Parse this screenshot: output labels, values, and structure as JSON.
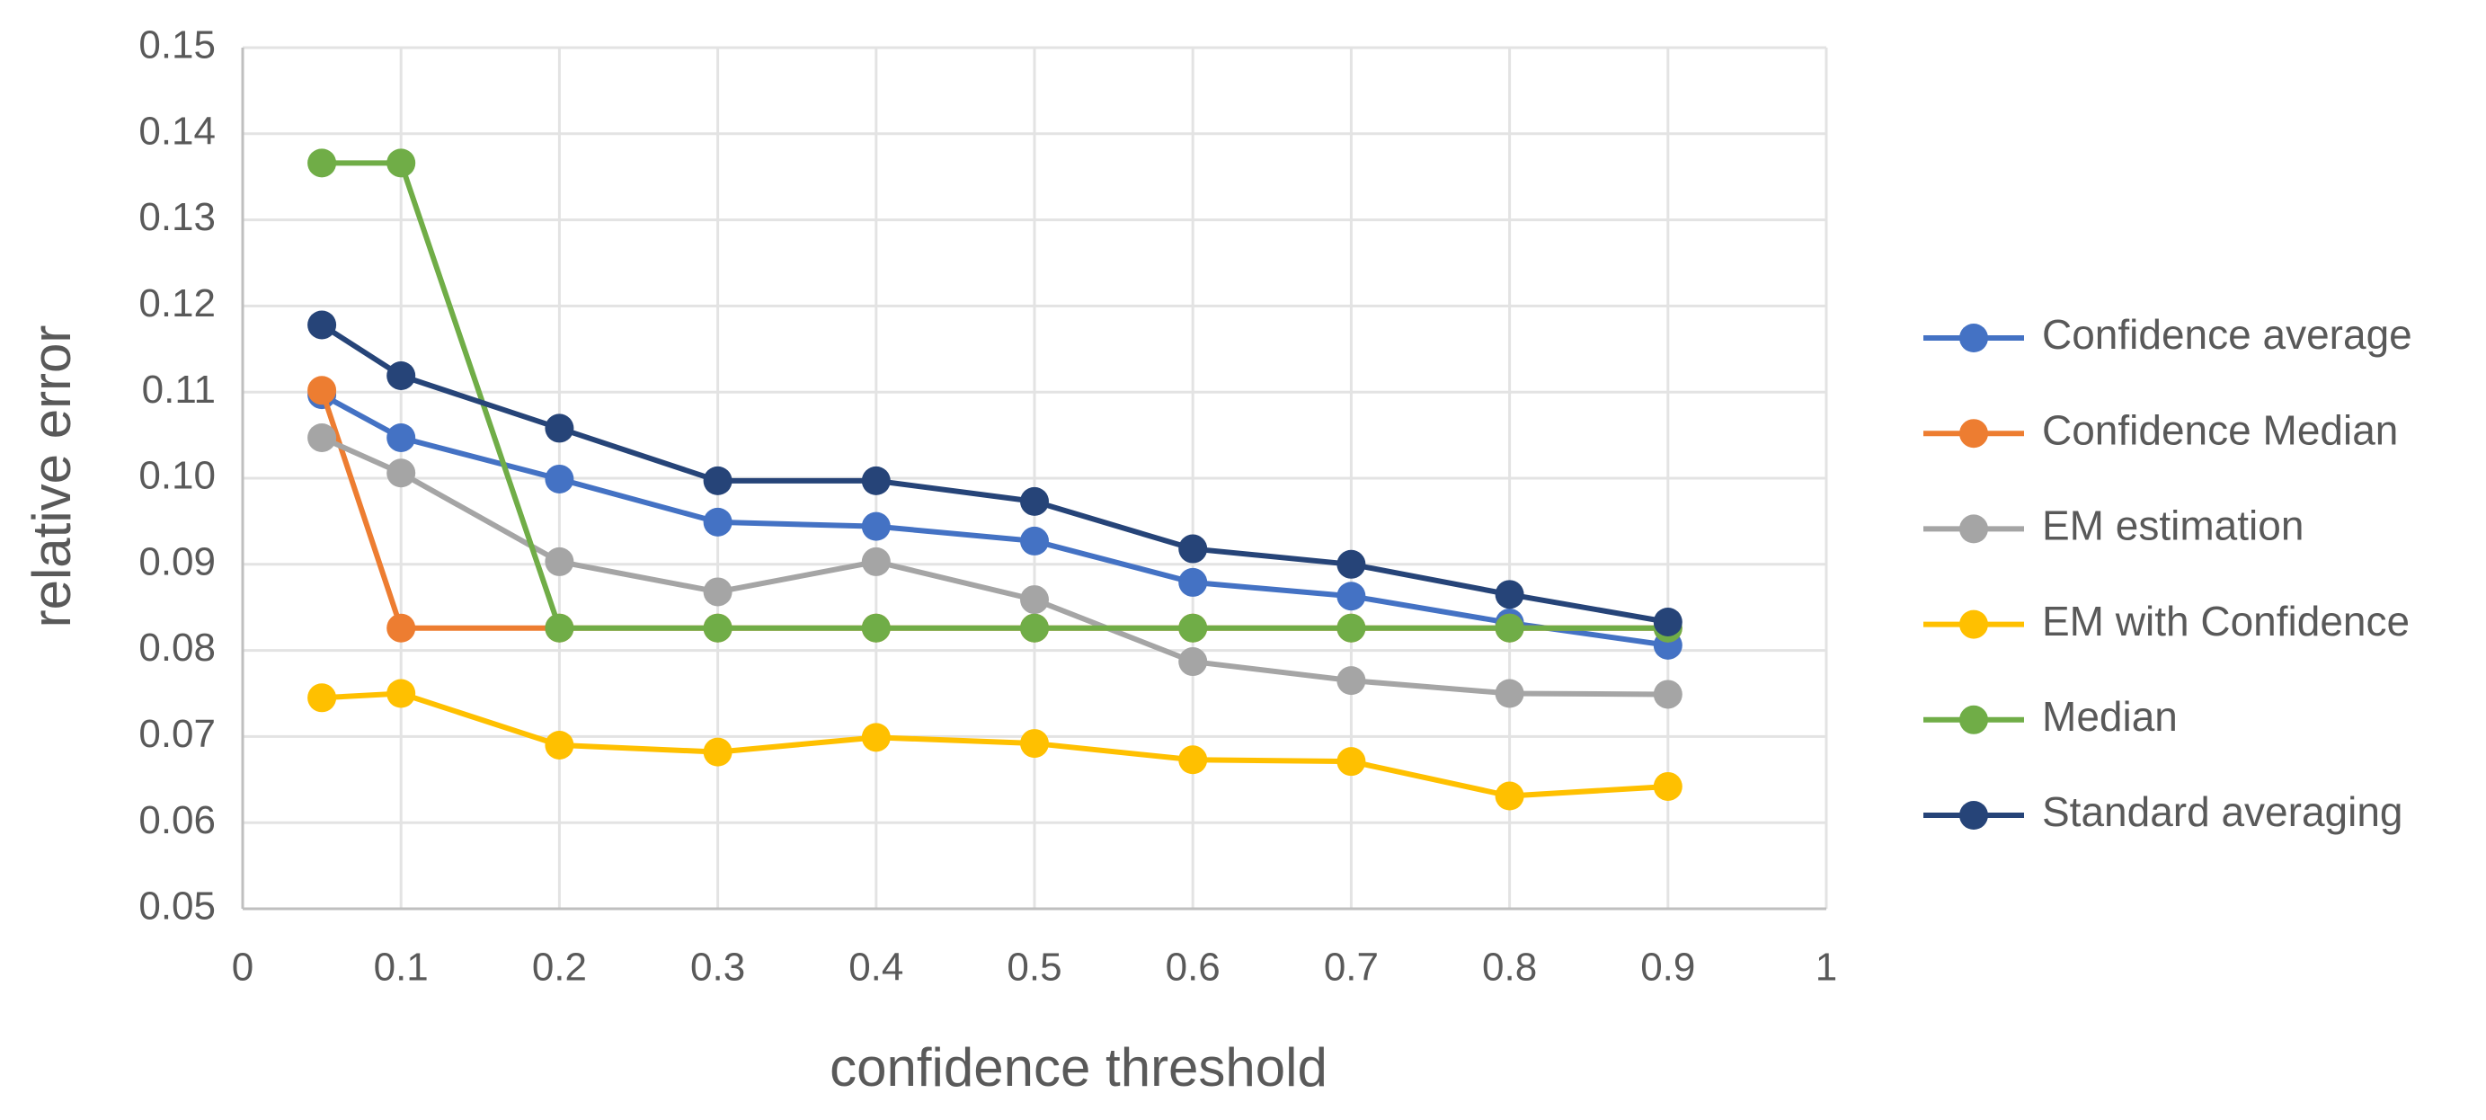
{
  "chart_data": {
    "type": "line",
    "x_label": "confidence threshold",
    "y_label": "relative  error",
    "x": [
      0.05,
      0.1,
      0.2,
      0.3,
      0.4,
      0.5,
      0.6,
      0.7,
      0.8,
      0.9
    ],
    "xlim": [
      0,
      1
    ],
    "xticks": [
      0,
      0.1,
      0.2,
      0.3,
      0.4,
      0.5,
      0.6,
      0.7,
      0.8,
      0.9,
      1
    ],
    "ylim": [
      0.05,
      0.15
    ],
    "yticks": [
      0.05,
      0.06,
      0.07,
      0.08,
      0.09,
      {
        "value": 0.1,
        "label": "0.10"
      },
      0.11,
      0.12,
      0.13,
      0.14,
      0.15
    ],
    "grid": true,
    "legend": "right",
    "series": [
      {
        "name": "Confidence average",
        "color": "#4472c4",
        "values": [
          0.1097,
          0.1047,
          0.0999,
          0.0949,
          0.0944,
          0.0927,
          0.0879,
          0.0863,
          0.0832,
          0.0806
        ]
      },
      {
        "name": "Confidence Median",
        "color": "#ed7d31",
        "values": [
          0.1102,
          0.0826,
          0.0826,
          0.0826,
          0.0826,
          0.0826,
          0.0826,
          0.0826,
          0.0826,
          0.0826
        ]
      },
      {
        "name": "EM estimation",
        "color": "#a5a5a5",
        "values": [
          0.1047,
          0.1006,
          0.0903,
          0.0868,
          0.0903,
          0.0859,
          0.0787,
          0.0765,
          0.075,
          0.0749
        ]
      },
      {
        "name": "EM with Confidence",
        "color": "#ffc000",
        "values": [
          0.0745,
          0.075,
          0.069,
          0.0682,
          0.0699,
          0.0692,
          0.0673,
          0.0671,
          0.0631,
          0.0642
        ]
      },
      {
        "name": "Median",
        "color": "#70ad47",
        "values": [
          0.1366,
          0.1366,
          0.0826,
          0.0826,
          0.0826,
          0.0826,
          0.0826,
          0.0826,
          0.0826,
          0.0826
        ]
      },
      {
        "name": "Standard averaging",
        "color": "#264478",
        "values": [
          0.1178,
          0.1119,
          0.1058,
          0.0997,
          0.0997,
          0.0973,
          0.0918,
          0.09,
          0.0865,
          0.0833
        ]
      }
    ]
  }
}
